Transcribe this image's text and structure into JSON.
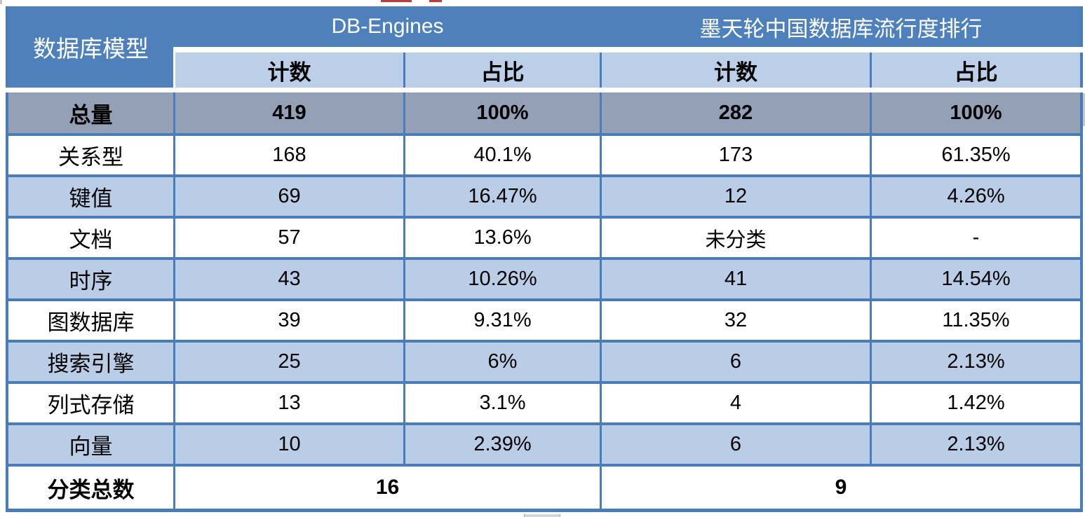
{
  "table": {
    "header": {
      "model_column": "数据库模型",
      "group1": "DB-Engines",
      "group2": "墨天轮中国数据库流行度排行",
      "sub": [
        "计数",
        "占比",
        "计数",
        "占比"
      ]
    },
    "rows": [
      {
        "label": "总量",
        "values": [
          "419",
          "100%",
          "282",
          "100%"
        ]
      },
      {
        "label": "关系型",
        "values": [
          "168",
          "40.1%",
          "173",
          "61.35%"
        ]
      },
      {
        "label": "键值",
        "values": [
          "69",
          "16.47%",
          "12",
          "4.26%"
        ]
      },
      {
        "label": "文档",
        "values": [
          "57",
          "13.6%",
          "未分类",
          "-"
        ]
      },
      {
        "label": "时序",
        "values": [
          "43",
          "10.26%",
          "41",
          "14.54%"
        ]
      },
      {
        "label": "图数据库",
        "values": [
          "39",
          "9.31%",
          "32",
          "11.35%"
        ]
      },
      {
        "label": "搜索引擎",
        "values": [
          "25",
          "6%",
          "6",
          "2.13%"
        ]
      },
      {
        "label": "列式存储",
        "values": [
          "13",
          "3.1%",
          "4",
          "1.42%"
        ]
      },
      {
        "label": "向量",
        "values": [
          "10",
          "2.39%",
          "6",
          "2.13%"
        ]
      }
    ],
    "footer": {
      "label": "分类总数",
      "group1_value": "16",
      "group2_value": "9"
    }
  },
  "colors": {
    "header_blue": "#4e80bc",
    "grid_border_blue": "#4a7cba",
    "subheader_blue": "#bccfe8",
    "stripe_blue": "#b9cde7",
    "total_row_gray": "#93a0b6",
    "artifact_red": "#c23b3b"
  },
  "chart_data": {
    "type": "table",
    "column_groups": [
      "DB-Engines",
      "墨天轮中国数据库流行度排行"
    ],
    "columns": [
      "数据库模型",
      "计数",
      "占比",
      "计数",
      "占比"
    ],
    "rows": [
      [
        "总量",
        "419",
        "100%",
        "282",
        "100%"
      ],
      [
        "关系型",
        "168",
        "40.1%",
        "173",
        "61.35%"
      ],
      [
        "键值",
        "69",
        "16.47%",
        "12",
        "4.26%"
      ],
      [
        "文档",
        "57",
        "13.6%",
        "未分类",
        "-"
      ],
      [
        "时序",
        "43",
        "10.26%",
        "41",
        "14.54%"
      ],
      [
        "图数据库",
        "39",
        "9.31%",
        "32",
        "11.35%"
      ],
      [
        "搜索引擎",
        "25",
        "6%",
        "6",
        "2.13%"
      ],
      [
        "列式存储",
        "13",
        "3.1%",
        "4",
        "1.42%"
      ],
      [
        "向量",
        "10",
        "2.39%",
        "6",
        "2.13%"
      ]
    ],
    "footer": [
      "分类总数",
      "16",
      "9"
    ]
  }
}
